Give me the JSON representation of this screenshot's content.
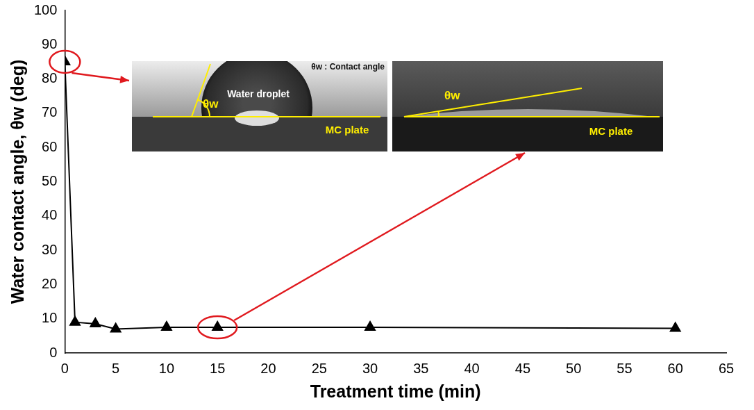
{
  "chart_data": {
    "type": "line",
    "x": [
      0,
      1,
      3,
      5,
      10,
      15,
      30,
      60
    ],
    "values": [
      85,
      9,
      8.5,
      7,
      7.5,
      7.5,
      7.5,
      7.2
    ],
    "color": "#000000",
    "marker": "triangle",
    "line_style": "solid",
    "xlabel": "Treatment time (min)",
    "ylabel": "Water contact angle, θw (deg)",
    "xlim": [
      0,
      65
    ],
    "xticks": [
      0,
      5,
      10,
      15,
      20,
      25,
      30,
      35,
      40,
      45,
      50,
      55,
      60,
      65
    ],
    "ylim": [
      0,
      100
    ],
    "yticks": [
      0,
      10,
      20,
      30,
      40,
      50,
      60,
      70,
      80,
      90,
      100
    ],
    "grid": false,
    "annotations": [
      "θw : Contact angle",
      "Water droplet",
      "MC plate",
      "θw",
      "MC plate"
    ]
  }
}
